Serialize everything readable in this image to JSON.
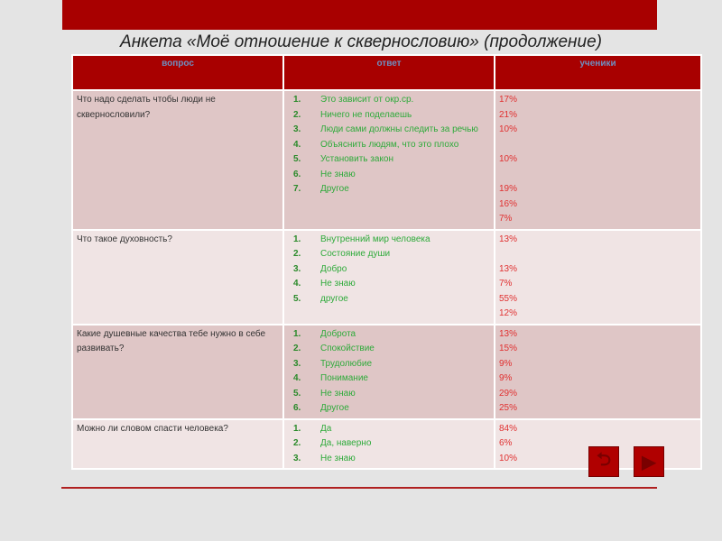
{
  "title": "Анкета «Моё отношение к сквернословию» (продолжение)",
  "table": {
    "headers": [
      "вопрос",
      "ответ",
      "ученики"
    ],
    "rows": [
      {
        "question": "Что надо сделать чтобы люди не сквернословили?",
        "answers": [
          "Это зависит от окр.ср.",
          "Ничего не поделаешь",
          "Люди сами должны следить за речью",
          "Объяснить людям, что это плохо",
          "Установить закон",
          "Не знаю",
          "Другое"
        ],
        "percents": [
          "17%",
          "21%",
          "10%",
          "",
          "10%",
          "",
          "19%",
          "16%",
          "7%"
        ]
      },
      {
        "question": "Что такое духовность?",
        "answers": [
          "Внутренний мир человека",
          "Состояние души",
          "Добро",
          "Не знаю",
          "другое"
        ],
        "percents": [
          "13%",
          "",
          "13%",
          "7%",
          "55%",
          "12%"
        ]
      },
      {
        "question": "Какие душевные качества тебе нужно в себе развивать?",
        "answers": [
          "Доброта",
          "Спокойствие",
          "Трудолюбие",
          "Понимание",
          "Не знаю",
          "Другое"
        ],
        "percents": [
          "13%",
          "15%",
          "9%",
          "9%",
          "29%",
          "25%"
        ]
      },
      {
        "question": "Можно ли словом спасти человека?",
        "answers": [
          "Да",
          "Да, наверно",
          "Не знаю"
        ],
        "percents": [
          "84%",
          "6%",
          "10%"
        ]
      }
    ]
  },
  "nav": {
    "return_icon": "u-turn-icon",
    "next_icon": "play-triangle-icon"
  },
  "colors": {
    "accent": "#a80000",
    "answer": "#2eaa3a",
    "percent": "#e03030"
  }
}
